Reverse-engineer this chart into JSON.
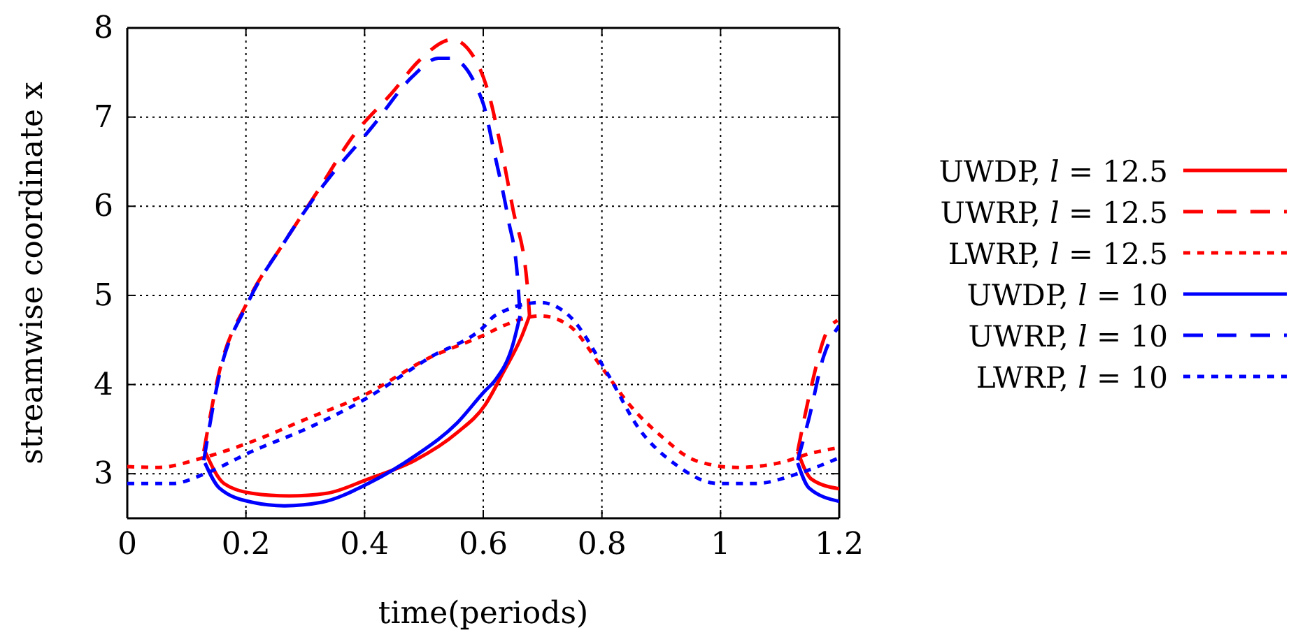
{
  "chart_data": {
    "type": "line",
    "xlabel": "time(periods)",
    "ylabel": "streamwise coordinate x",
    "xlim": [
      0,
      1.2
    ],
    "xticks": [
      0,
      0.2,
      0.4,
      0.6,
      0.8,
      1,
      1.2
    ],
    "ylim": [
      2.5,
      8
    ],
    "yticks": [
      3,
      4,
      5,
      6,
      7,
      8
    ],
    "grid": true,
    "legend": "right",
    "marker": "none",
    "series": [
      {
        "name": "UWDP, 𝑙 = 12.5",
        "color": "#ff0000",
        "line_style": "solid",
        "x": [
          0.131,
          0.163,
          0.21,
          0.273,
          0.336,
          0.406,
          0.485,
          0.556,
          0.603,
          0.634,
          0.666,
          0.678,
          0.9,
          1.13,
          1.153,
          1.2
        ],
        "values": [
          3.25,
          2.89,
          2.78,
          2.75,
          2.78,
          2.94,
          3.15,
          3.46,
          3.77,
          4.14,
          4.56,
          4.77,
          null,
          3.25,
          2.94,
          2.83
        ]
      },
      {
        "name": "UWRP, 𝑙 = 12.5",
        "color": "#ff0000",
        "line_style": "dashed",
        "x": [
          0.129,
          0.155,
          0.202,
          0.265,
          0.321,
          0.382,
          0.446,
          0.493,
          0.548,
          0.587,
          0.611,
          0.627,
          0.65,
          0.674,
          0.678,
          0.9,
          1.13,
          1.153,
          1.177,
          1.197
        ],
        "values": [
          3.25,
          4.14,
          4.92,
          5.6,
          6.17,
          6.8,
          7.27,
          7.64,
          7.87,
          7.64,
          7.22,
          6.75,
          5.97,
          5.13,
          4.77,
          null,
          3.25,
          3.98,
          4.56,
          4.72
        ]
      },
      {
        "name": "LWRP, 𝑙 = 12.5",
        "color": "#ff0000",
        "line_style": "dotted",
        "x": [
          0,
          0.053,
          0.123,
          0.21,
          0.304,
          0.399,
          0.509,
          0.603,
          0.634,
          0.697,
          0.745,
          0.8,
          0.847,
          0.902,
          0.957,
          1.028,
          1.098,
          1.153,
          1.197
        ],
        "values": [
          3.08,
          3.07,
          3.17,
          3.36,
          3.62,
          3.88,
          4.3,
          4.56,
          4.66,
          4.77,
          4.66,
          4.19,
          3.77,
          3.41,
          3.15,
          3.07,
          3.12,
          3.23,
          3.29
        ]
      },
      {
        "name": "UWDP, 𝑙 = 10",
        "color": "#0000ff",
        "line_style": "solid",
        "x": [
          0.131,
          0.155,
          0.21,
          0.265,
          0.328,
          0.406,
          0.485,
          0.556,
          0.603,
          0.619,
          0.65,
          0.662,
          0.9,
          1.13,
          1.149,
          1.2
        ],
        "values": [
          3.12,
          2.84,
          2.68,
          2.64,
          2.68,
          2.89,
          3.2,
          3.57,
          3.93,
          4.04,
          4.45,
          4.77,
          null,
          3.12,
          2.84,
          2.69
        ]
      },
      {
        "name": "UWRP, 𝑙 = 10",
        "color": "#0000ff",
        "line_style": "dashed",
        "x": [
          0.129,
          0.155,
          0.202,
          0.265,
          0.321,
          0.414,
          0.48,
          0.524,
          0.545,
          0.599,
          0.619,
          0.642,
          0.658,
          0.662,
          0.9,
          1.13,
          1.149,
          1.173,
          1.2
        ],
        "values": [
          3.15,
          4.1,
          4.9,
          5.6,
          6.15,
          6.9,
          7.45,
          7.66,
          7.66,
          7.17,
          6.59,
          5.86,
          5.18,
          4.77,
          null,
          3.15,
          3.62,
          4.3,
          4.66
        ]
      },
      {
        "name": "LWRP, 𝑙 = 10",
        "color": "#0000ff",
        "line_style": "dotted",
        "x": [
          0,
          0.076,
          0.131,
          0.21,
          0.304,
          0.399,
          0.509,
          0.603,
          0.619,
          0.697,
          0.745,
          0.808,
          0.862,
          0.925,
          0.996,
          1.059,
          1.13,
          1.197
        ],
        "values": [
          2.89,
          2.89,
          3.0,
          3.25,
          3.51,
          3.83,
          4.3,
          4.66,
          4.77,
          4.92,
          4.77,
          4.14,
          3.51,
          3.1,
          2.89,
          2.89,
          3.0,
          3.17
        ]
      }
    ]
  }
}
